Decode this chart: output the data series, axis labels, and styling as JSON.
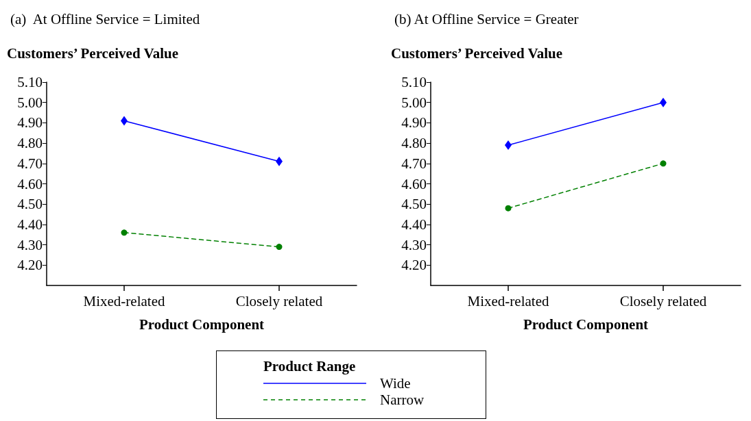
{
  "chart_data": [
    {
      "type": "line",
      "title": "(a)  At Offline Service = Limited",
      "ylabel": "Customers’ Perceived Value",
      "xlabel": "Product Component",
      "legend_title": "Product Range",
      "legend": "bottom",
      "categories": [
        "Mixed-related",
        "Closely related"
      ],
      "series": [
        {
          "name": "Wide",
          "color": "#0000ff",
          "values": [
            4.91,
            4.71
          ],
          "marker": "diamond",
          "line_style": "solid"
        },
        {
          "name": "Narrow",
          "color": "#008000",
          "values": [
            4.36,
            4.29
          ],
          "marker": "circle",
          "line_style": "dashed"
        }
      ],
      "ylim": [
        4.1,
        5.1
      ],
      "yticks": [
        {
          "value": 4.2,
          "label": "4.20"
        },
        {
          "value": 4.3,
          "label": "4.30"
        },
        {
          "value": 4.4,
          "label": "4.40"
        },
        {
          "value": 4.5,
          "label": "4.50"
        },
        {
          "value": 4.6,
          "label": "4.60"
        },
        {
          "value": 4.7,
          "label": "4.70"
        },
        {
          "value": 4.8,
          "label": "4.80"
        },
        {
          "value": 4.9,
          "label": "4.90"
        },
        {
          "value": 5.0,
          "label": "5.00"
        },
        {
          "value": 5.1,
          "label": "5.10"
        }
      ],
      "grid": false
    },
    {
      "type": "line",
      "title": "(b) At Offline Service = Greater",
      "ylabel": "Customers’ Perceived Value",
      "xlabel": "Product Component",
      "categories": [
        "Mixed-related",
        "Closely related"
      ],
      "series": [
        {
          "color": "#0000ff",
          "values": [
            4.79,
            5.0
          ],
          "marker": "diamond",
          "line_style": "solid"
        },
        {
          "color": "#008000",
          "values": [
            4.48,
            4.7
          ],
          "marker": "circle",
          "line_style": "dashed"
        }
      ],
      "ylim": [
        4.1,
        5.1
      ],
      "yticks": [
        {
          "value": 4.2,
          "label": "4.20"
        },
        {
          "value": 4.3,
          "label": "4.30"
        },
        {
          "value": 4.4,
          "label": "4.40"
        },
        {
          "value": 4.5,
          "label": "4.50"
        },
        {
          "value": 4.6,
          "label": "4.60"
        },
        {
          "value": 4.7,
          "label": "4.70"
        },
        {
          "value": 4.8,
          "label": "4.80"
        },
        {
          "value": 4.9,
          "label": "4.90"
        },
        {
          "value": 5.0,
          "label": "5.00"
        },
        {
          "value": 5.1,
          "label": "5.10"
        }
      ],
      "grid": false
    }
  ]
}
